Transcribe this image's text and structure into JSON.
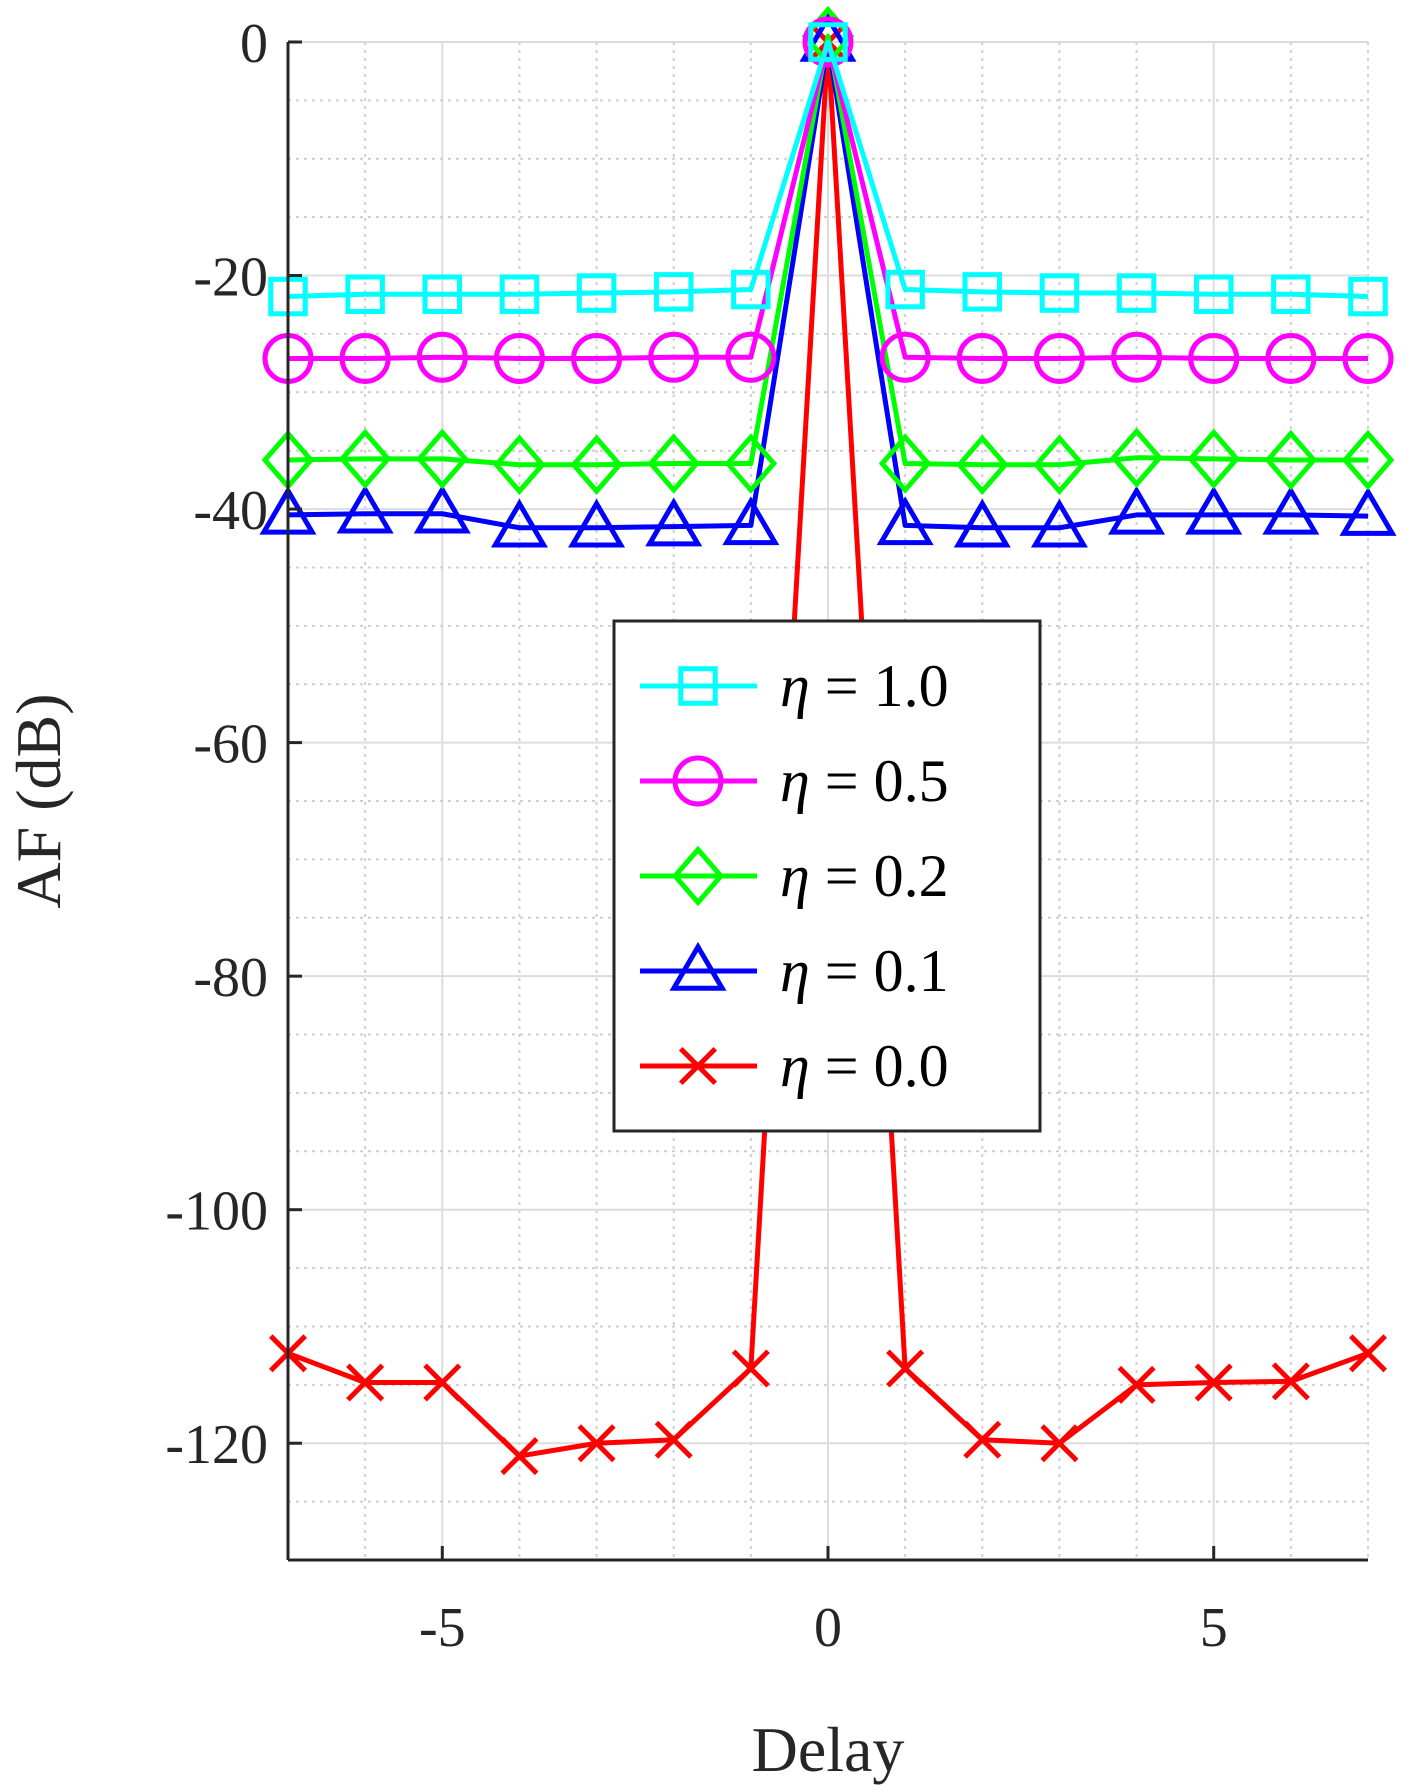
{
  "chart_data": {
    "type": "line",
    "title": "",
    "xlabel": "Delay",
    "ylabel": "AF (dB)",
    "xlim": [
      -7,
      7
    ],
    "ylim": [
      -130,
      0
    ],
    "xticks": [
      -5,
      0,
      5
    ],
    "xtick_labels": [
      "-5",
      "0",
      "5"
    ],
    "yticks": [
      0,
      -20,
      -40,
      -60,
      -80,
      -100,
      -120
    ],
    "ytick_labels": [
      "0",
      "-20",
      "-40",
      "-60",
      "-80",
      "-100",
      "-120"
    ],
    "grid": true,
    "minor_grid": true,
    "legend_position": "center",
    "x": [
      -7,
      -6,
      -5,
      -4,
      -3,
      -2,
      -1,
      0,
      1,
      2,
      3,
      4,
      5,
      6,
      7
    ],
    "series": [
      {
        "name": "η = 1.0",
        "symbol": "η",
        "value_text": " = 1.0",
        "color": "#00FFFF",
        "marker": "square",
        "values": [
          -21.8,
          -21.6,
          -21.6,
          -21.6,
          -21.5,
          -21.4,
          -21.2,
          0,
          -21.2,
          -21.4,
          -21.5,
          -21.5,
          -21.6,
          -21.6,
          -21.8
        ]
      },
      {
        "name": "η = 0.5",
        "symbol": "η",
        "value_text": " = 0.5",
        "color": "#FF00FF",
        "marker": "circle",
        "values": [
          -27.1,
          -27.1,
          -27.0,
          -27.1,
          -27.1,
          -27.0,
          -27.0,
          0,
          -27.0,
          -27.1,
          -27.1,
          -27.0,
          -27.1,
          -27.1,
          -27.1
        ]
      },
      {
        "name": "η = 0.2",
        "symbol": "η",
        "value_text": " = 0.2",
        "color": "#00FF00",
        "marker": "diamond",
        "values": [
          -35.8,
          -35.7,
          -35.7,
          -36.2,
          -36.2,
          -36.1,
          -36.1,
          0.5,
          -36.1,
          -36.2,
          -36.2,
          -35.6,
          -35.7,
          -35.8,
          -35.8
        ]
      },
      {
        "name": "η = 0.1",
        "symbol": "η",
        "value_text": " = 0.1",
        "color": "#0000FF",
        "marker": "triangle",
        "values": [
          -40.5,
          -40.4,
          -40.4,
          -41.6,
          -41.6,
          -41.5,
          -41.4,
          0,
          -41.4,
          -41.6,
          -41.6,
          -40.5,
          -40.5,
          -40.5,
          -40.6
        ]
      },
      {
        "name": "η = 0.0",
        "symbol": "η",
        "value_text": " = 0.0",
        "color": "#FF0000",
        "marker": "x",
        "values": [
          -112.3,
          -114.8,
          -114.8,
          -121.1,
          -120.0,
          -119.7,
          -113.6,
          0,
          -113.6,
          -119.7,
          -120.0,
          -115.0,
          -114.8,
          -114.7,
          -112.3
        ]
      }
    ]
  }
}
